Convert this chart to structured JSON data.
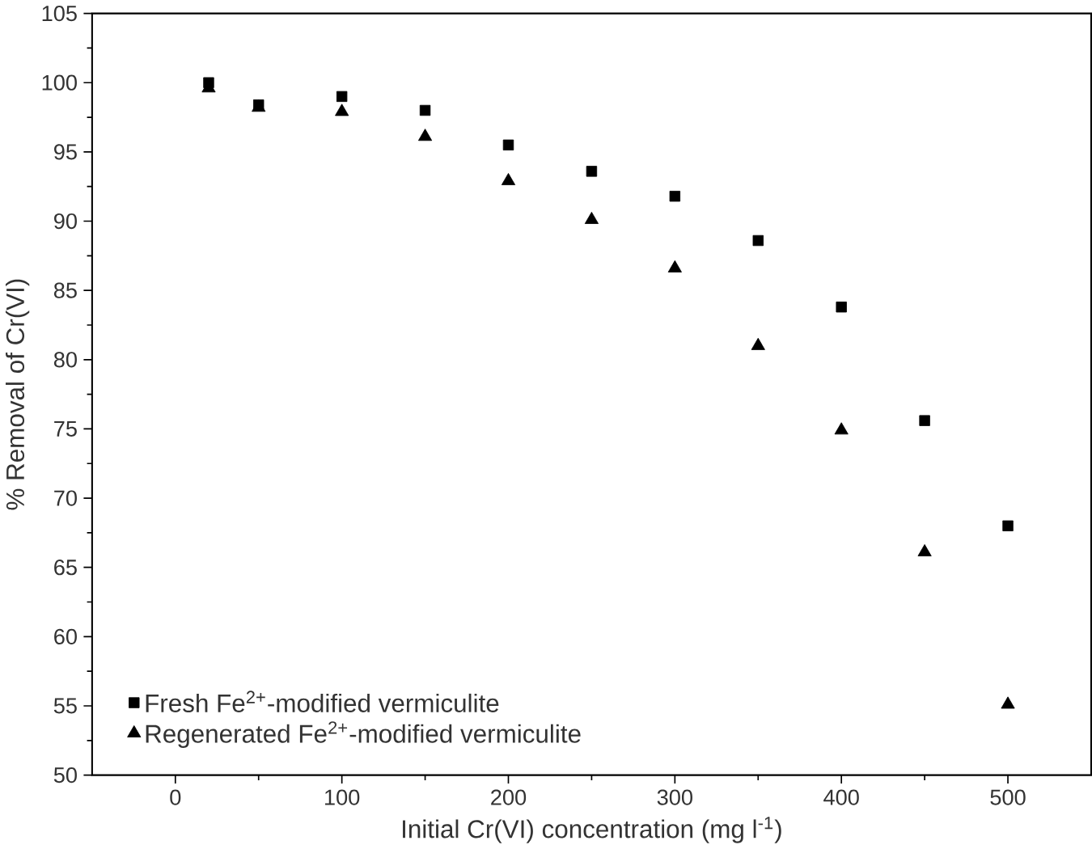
{
  "chart_data": {
    "type": "scatter",
    "xlabel": "Initial Cr(VI) concentration (mg l$^{-1}$)",
    "ylabel": "% Removal of Cr(VI)",
    "x": [
      20,
      50,
      100,
      150,
      200,
      250,
      300,
      350,
      400,
      450,
      500
    ],
    "series": [
      {
        "name": "Fresh Fe$^{2+}$-modified vermiculite",
        "color": "#000000",
        "marker": "square",
        "values": [
          100.0,
          98.4,
          99.0,
          98.0,
          95.5,
          93.6,
          91.8,
          88.6,
          83.8,
          75.6,
          68.0
        ]
      },
      {
        "name": "Regenerated Fe$^{2+}$-modified vermiculite",
        "color": "#000000",
        "marker": "triangle",
        "values": [
          99.6,
          98.2,
          97.9,
          96.1,
          92.9,
          90.1,
          86.6,
          81.0,
          74.9,
          66.1,
          55.1
        ]
      }
    ],
    "xlim": [
      -50,
      550
    ],
    "ylim": [
      50,
      105
    ],
    "xticks": [
      0,
      100,
      200,
      300,
      400,
      500
    ],
    "yticks": [
      50,
      55,
      60,
      65,
      70,
      75,
      80,
      85,
      90,
      95,
      100,
      105
    ],
    "grid": false,
    "legend": "bottom left"
  }
}
